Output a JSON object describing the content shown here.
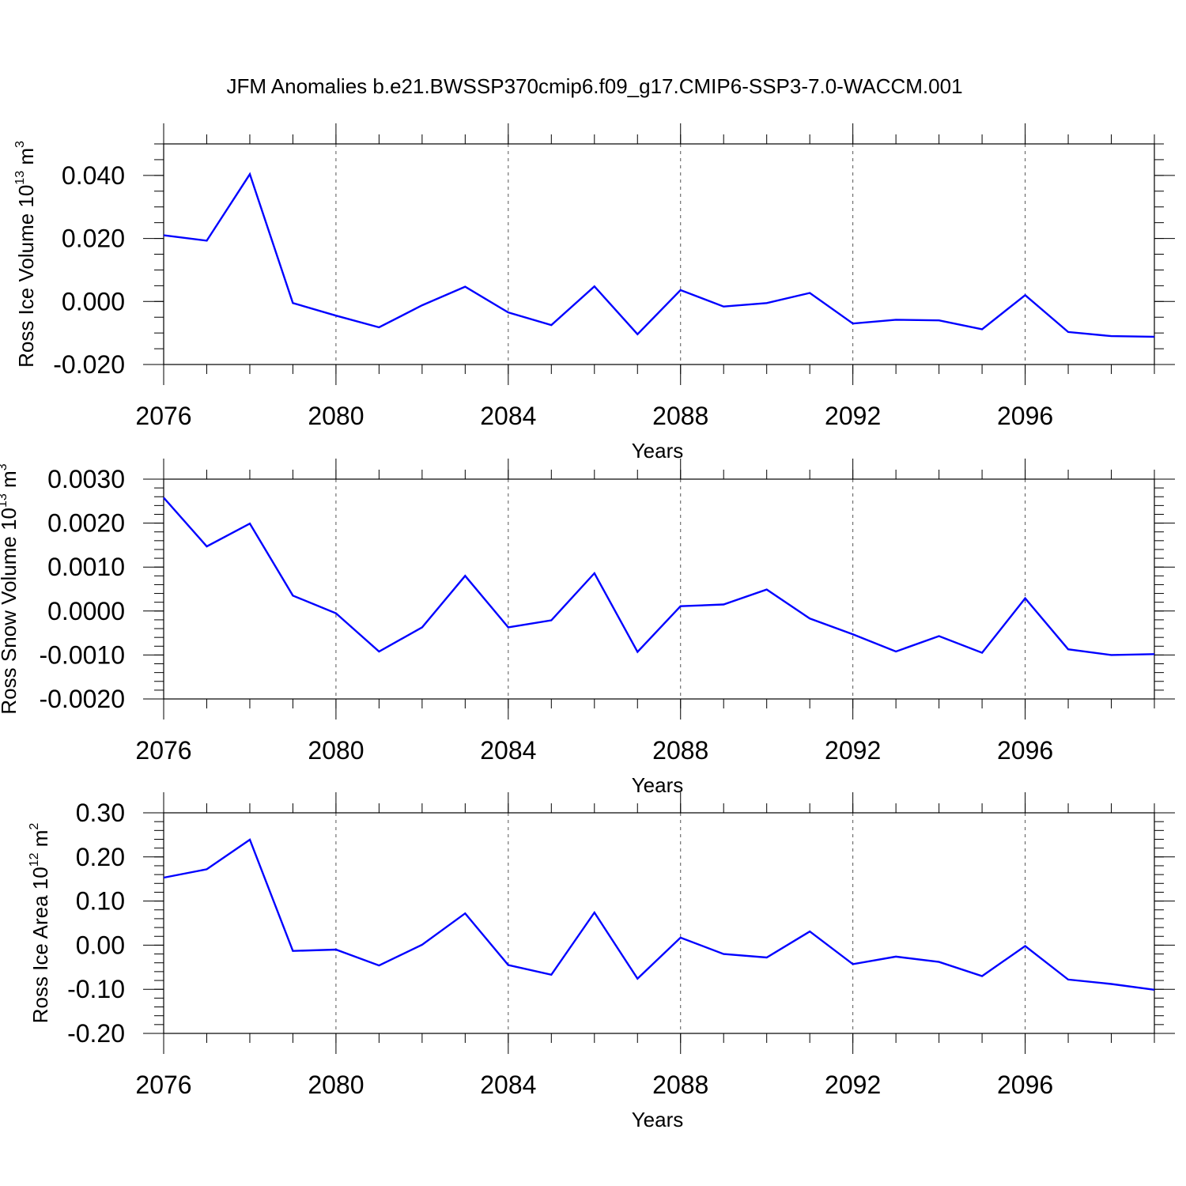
{
  "figure": {
    "title": "JFM Anomalies b.e21.BWSSP370cmip6.f09_g17.CMIP6-SSP3-7.0-WACCM.001",
    "line_color": "#0000ff"
  },
  "chart_data": [
    {
      "type": "line",
      "xlabel": "Years",
      "ylabel": {
        "main": "Ross Ice Volume 10",
        "exp": "13",
        "unit": " m",
        "unit_exp": "3"
      },
      "x": [
        2076,
        2077,
        2078,
        2079,
        2080,
        2081,
        2082,
        2083,
        2084,
        2085,
        2086,
        2087,
        2088,
        2089,
        2090,
        2091,
        2092,
        2093,
        2094,
        2095,
        2096,
        2097,
        2098,
        2099
      ],
      "series": [
        {
          "values": [
            0.021,
            0.0193,
            0.0404,
            -0.0005,
            -0.0045,
            -0.0082,
            -0.0012,
            0.0047,
            -0.0035,
            -0.0075,
            0.0048,
            -0.0104,
            0.0036,
            -0.0016,
            -0.0005,
            0.0027,
            -0.007,
            -0.0058,
            -0.006,
            -0.0088,
            0.002,
            -0.0097,
            -0.011,
            -0.0112
          ]
        }
      ],
      "xlim": [
        2076,
        2099
      ],
      "ylim": [
        -0.02,
        0.05
      ],
      "xticks": [
        "2076",
        "2080",
        "2084",
        "2088",
        "2092",
        "2096"
      ],
      "yticks": [
        {
          "v": -0.02,
          "label": "-0.020"
        },
        {
          "v": 0.0,
          "label": "0.000"
        },
        {
          "v": 0.02,
          "label": "0.020"
        },
        {
          "v": 0.04,
          "label": "0.040"
        }
      ],
      "yminor_step": 0.005,
      "grid": "vertical dashed at major x ticks"
    },
    {
      "type": "line",
      "xlabel": "Years",
      "ylabel": {
        "main": "Ross Snow Volume 10",
        "exp": "13",
        "unit": " m",
        "unit_exp": "3"
      },
      "x": [
        2076,
        2077,
        2078,
        2079,
        2080,
        2081,
        2082,
        2083,
        2084,
        2085,
        2086,
        2087,
        2088,
        2089,
        2090,
        2091,
        2092,
        2093,
        2094,
        2095,
        2096,
        2097,
        2098,
        2099
      ],
      "series": [
        {
          "values": [
            0.00258,
            0.00147,
            0.00199,
            0.00035,
            -5e-05,
            -0.00092,
            -0.00037,
            0.0008,
            -0.00037,
            -0.00021,
            0.00086,
            -0.00093,
            0.00011,
            0.00015,
            0.00049,
            -0.00017,
            -0.00053,
            -0.00092,
            -0.00057,
            -0.00095,
            0.00029,
            -0.00087,
            -0.001,
            -0.00098
          ]
        }
      ],
      "xlim": [
        2076,
        2099
      ],
      "ylim": [
        -0.002,
        0.003
      ],
      "xticks": [
        "2076",
        "2080",
        "2084",
        "2088",
        "2092",
        "2096"
      ],
      "yticks": [
        {
          "v": -0.002,
          "label": "-0.0020"
        },
        {
          "v": -0.001,
          "label": "-0.0010"
        },
        {
          "v": 0.0,
          "label": "0.0000"
        },
        {
          "v": 0.001,
          "label": "0.0010"
        },
        {
          "v": 0.002,
          "label": "0.0020"
        },
        {
          "v": 0.003,
          "label": "0.0030"
        }
      ],
      "yminor_step": 0.0002,
      "grid": "vertical dashed at major x ticks"
    },
    {
      "type": "line",
      "xlabel": "Years",
      "ylabel": {
        "main": "Ross Ice Area 10",
        "exp": "12",
        "unit": " m",
        "unit_exp": "2"
      },
      "x": [
        2076,
        2077,
        2078,
        2079,
        2080,
        2081,
        2082,
        2083,
        2084,
        2085,
        2086,
        2087,
        2088,
        2089,
        2090,
        2091,
        2092,
        2093,
        2094,
        2095,
        2096,
        2097,
        2098,
        2099
      ],
      "series": [
        {
          "values": [
            0.153,
            0.172,
            0.239,
            -0.013,
            -0.01,
            -0.046,
            0.001,
            0.072,
            -0.045,
            -0.067,
            0.074,
            -0.076,
            0.017,
            -0.02,
            -0.028,
            0.031,
            -0.043,
            -0.026,
            -0.038,
            -0.07,
            -0.002,
            -0.078,
            -0.088,
            -0.101
          ]
        }
      ],
      "xlim": [
        2076,
        2099
      ],
      "ylim": [
        -0.2,
        0.3
      ],
      "xticks": [
        "2076",
        "2080",
        "2084",
        "2088",
        "2092",
        "2096"
      ],
      "yticks": [
        {
          "v": -0.2,
          "label": "-0.20"
        },
        {
          "v": -0.1,
          "label": "-0.10"
        },
        {
          "v": 0.0,
          "label": "0.00"
        },
        {
          "v": 0.1,
          "label": "0.10"
        },
        {
          "v": 0.2,
          "label": "0.20"
        },
        {
          "v": 0.3,
          "label": "0.30"
        }
      ],
      "yminor_step": 0.02,
      "grid": "vertical dashed at major x ticks"
    }
  ]
}
